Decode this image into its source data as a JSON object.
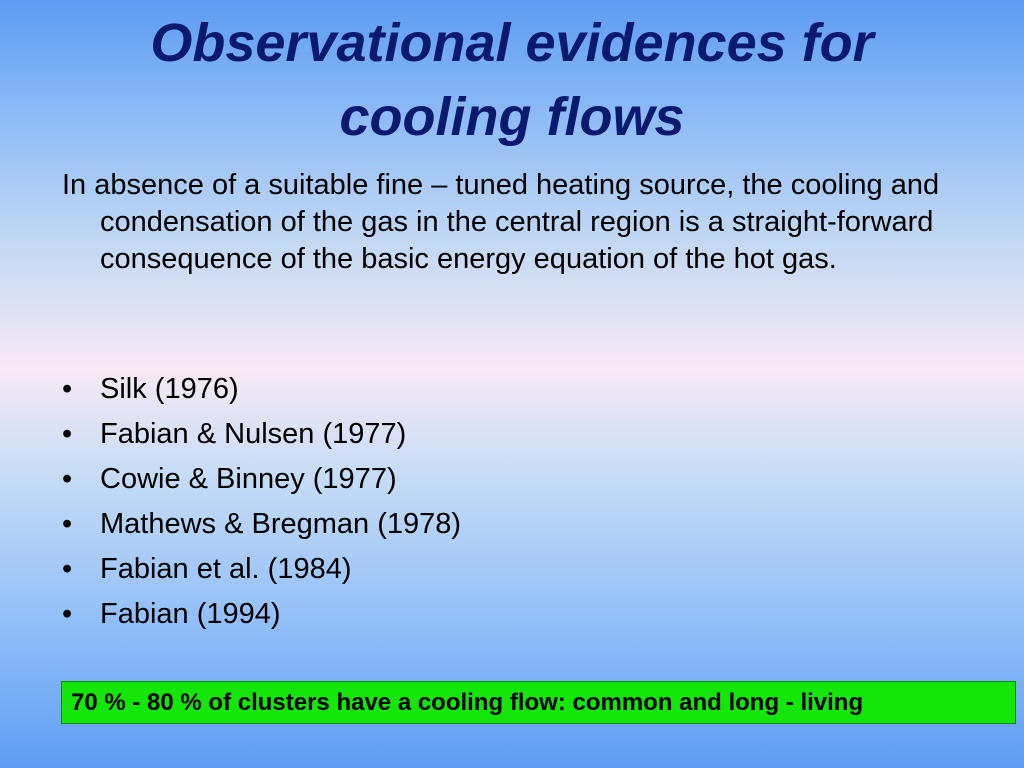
{
  "slide": {
    "title_line1": "Observational evidences for",
    "title_line2": "cooling flows",
    "intro": "In absence of a suitable fine – tuned heating source, the cooling and condensation of the gas in the central region is a straight-forward consequence of the basic energy equation of the hot gas.",
    "bullet_glyph": "•",
    "references": [
      "Silk (1976)",
      "Fabian & Nulsen (1977)",
      "Cowie & Binney (1977)",
      "Mathews & Bregman (1978)",
      "Fabian et al. (1984)",
      "Fabian (1994)"
    ],
    "callout": "70 % - 80 % of clusters have a cooling flow: common and long - living",
    "colors": {
      "title": "#0b1a6e",
      "callout_bg": "#14e60a",
      "background_top": "#5c9cf2",
      "background_mid": "#f7e9f4"
    }
  }
}
